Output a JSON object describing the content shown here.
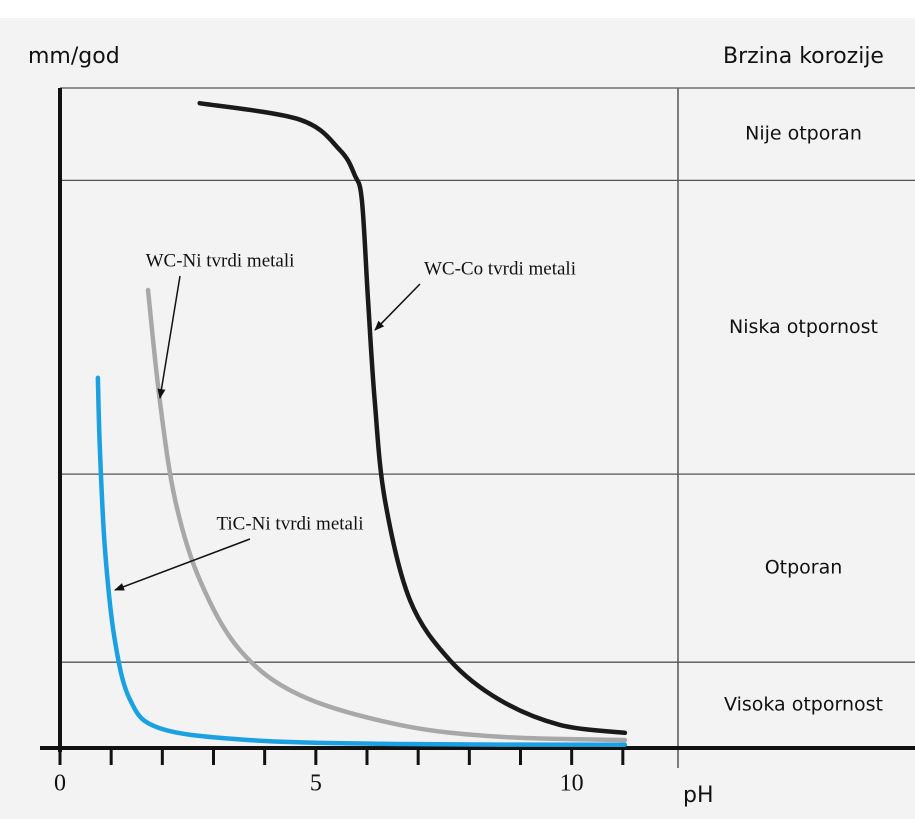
{
  "chart_data": {
    "type": "line",
    "y_label": "mm/god",
    "zone_title": "Brzina korozije",
    "x_label": "pH",
    "xlim": [
      0,
      12
    ],
    "xticks": [
      0,
      5,
      10
    ],
    "minor_xticks": [
      1,
      2,
      3,
      4,
      6,
      7,
      8,
      9,
      11
    ],
    "ylim": [
      0,
      100
    ],
    "zones": [
      {
        "label": "Nije otporan",
        "from": 86,
        "to": 100
      },
      {
        "label": "Niska otpornost",
        "from": 41.5,
        "to": 86
      },
      {
        "label": "Otporan",
        "from": 13,
        "to": 41.5
      },
      {
        "label": "Visoka otpornost",
        "from": 0,
        "to": 13
      }
    ],
    "series": [
      {
        "name": "WC-Co tvrdi metali",
        "color": "#1a1a1a",
        "x": [
          2.73,
          4.69,
          5.47,
          5.76,
          5.9,
          6.02,
          6.15,
          6.35,
          6.84,
          7.62,
          8.59,
          9.77,
          11.04
        ],
        "values": [
          97.7,
          95.2,
          90.6,
          86.8,
          83,
          67.9,
          52.7,
          37.6,
          22.4,
          13.3,
          7.3,
          3.5,
          2.3
        ]
      },
      {
        "name": "WC-Ni tvrdi metali",
        "color": "#a8a8a8",
        "x": [
          1.72,
          1.95,
          2.25,
          2.73,
          3.52,
          4.69,
          6.64,
          8.59,
          11.04
        ],
        "values": [
          69.4,
          52.7,
          37.6,
          25.5,
          14.8,
          8.0,
          3.5,
          1.7,
          1.2
        ]
      },
      {
        "name": "TiC-Ni tvrdi metali",
        "color": "#1ba1e2",
        "x": [
          0.74,
          0.78,
          0.88,
          1.07,
          1.37,
          1.95,
          3.71,
          6.64,
          11.04
        ],
        "values": [
          56.1,
          45.2,
          30,
          16.4,
          7.3,
          3.0,
          1.2,
          0.6,
          0.5
        ]
      }
    ]
  }
}
